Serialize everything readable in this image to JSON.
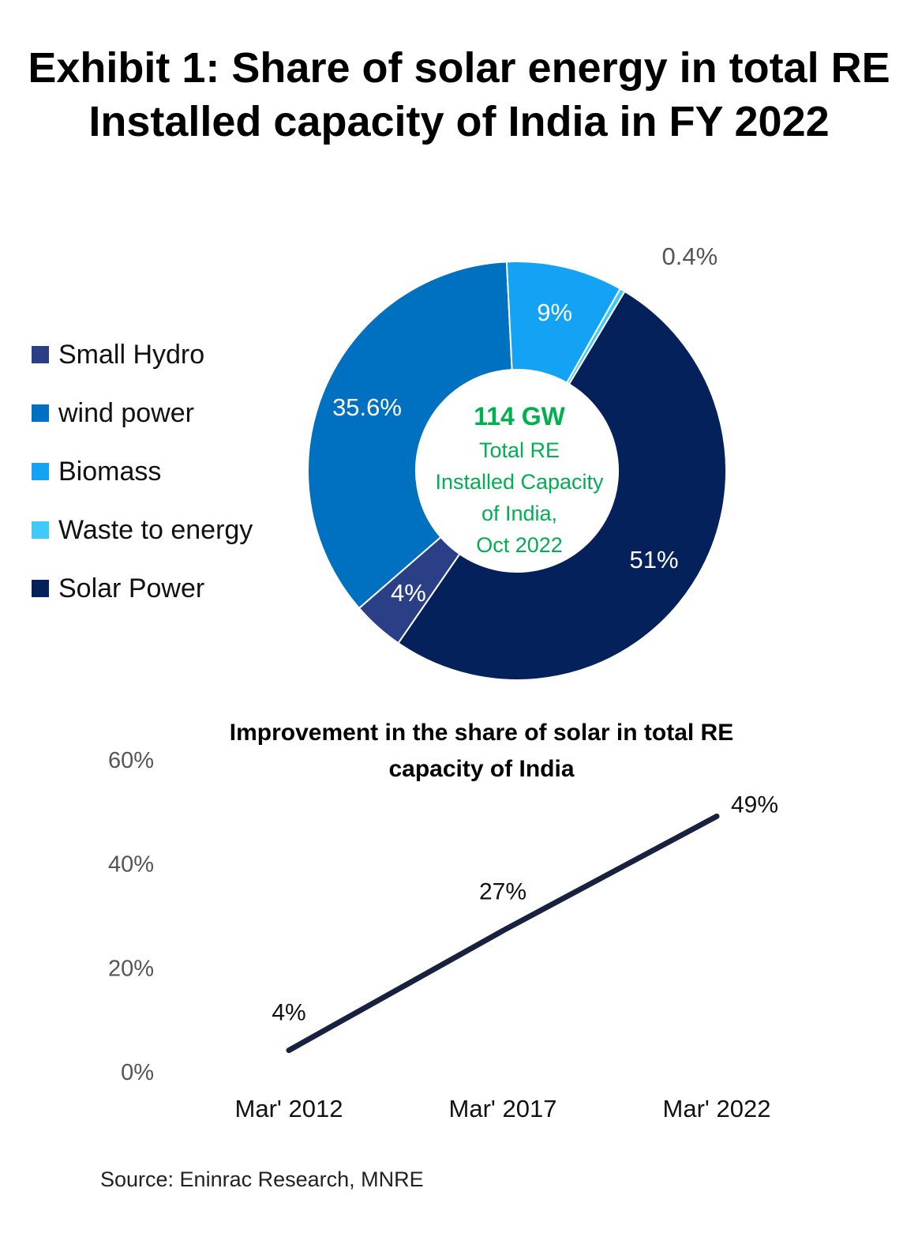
{
  "title_lines": [
    "Exhibit 1: Share of solar energy  in total RE",
    "Installed capacity of India in FY 2022"
  ],
  "source": "Source: Eninrac Research, MNRE",
  "colors": {
    "small_hydro": "#2b3f87",
    "wind": "#0071c1",
    "biomass": "#14a2f5",
    "waste": "#41c9fb",
    "solar": "#04215c",
    "center_text": "#00b050",
    "line": "#18213f"
  },
  "chart_data": [
    {
      "type": "pie",
      "style": "donut",
      "title": "",
      "center_label": {
        "value": "114 GW",
        "lines": [
          "Total RE",
          "Installed Capacity",
          "of India,",
          "Oct 2022"
        ]
      },
      "legend": [
        "Small Hydro",
        "wind power",
        "Biomass",
        "Waste to energy",
        "Solar Power"
      ],
      "legend_placement": "left",
      "slices": [
        {
          "name": "Solar Power",
          "value": 51,
          "label": "51%",
          "color_key": "solar"
        },
        {
          "name": "Small Hydro",
          "value": 4,
          "label": "4%",
          "color_key": "small_hydro"
        },
        {
          "name": "wind power",
          "value": 35.6,
          "label": "35.6%",
          "color_key": "wind"
        },
        {
          "name": "Biomass",
          "value": 9,
          "label": "9%",
          "color_key": "biomass"
        },
        {
          "name": "Waste to energy",
          "value": 0.4,
          "label": "0.4%",
          "color_key": "waste"
        }
      ]
    },
    {
      "type": "line",
      "title_lines": [
        "Improvement in the share of solar in total RE",
        "capacity of India"
      ],
      "categories": [
        "Mar' 2012",
        "Mar' 2017",
        "Mar' 2022"
      ],
      "series": [
        {
          "values": [
            4,
            27,
            49
          ],
          "labels": [
            "4%",
            "27%",
            "49%"
          ]
        }
      ],
      "ylim": [
        0,
        60
      ],
      "yticks": [
        0,
        20,
        40,
        60
      ],
      "ytick_labels": [
        "0%",
        "20%",
        "40%",
        "60%"
      ],
      "grid": false,
      "legend": false
    }
  ]
}
